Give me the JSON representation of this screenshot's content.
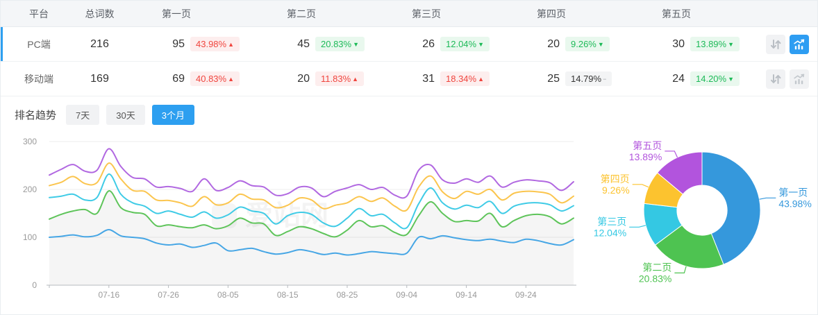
{
  "table": {
    "headers": [
      "平台",
      "总词数",
      "第一页",
      "第二页",
      "第三页",
      "第四页",
      "第五页"
    ],
    "rows": [
      {
        "platform": "PC端",
        "selected": true,
        "total": "216",
        "chart_active": true,
        "pages": [
          {
            "count": "95",
            "pct": "43.98%",
            "dir": "up"
          },
          {
            "count": "45",
            "pct": "20.83%",
            "dir": "down"
          },
          {
            "count": "26",
            "pct": "12.04%",
            "dir": "down"
          },
          {
            "count": "20",
            "pct": "9.26%",
            "dir": "down"
          },
          {
            "count": "30",
            "pct": "13.89%",
            "dir": "down"
          }
        ]
      },
      {
        "platform": "移动端",
        "selected": false,
        "total": "169",
        "chart_active": false,
        "pages": [
          {
            "count": "69",
            "pct": "40.83%",
            "dir": "up"
          },
          {
            "count": "20",
            "pct": "11.83%",
            "dir": "up"
          },
          {
            "count": "31",
            "pct": "18.34%",
            "dir": "up"
          },
          {
            "count": "25",
            "pct": "14.79%",
            "dir": "flat"
          },
          {
            "count": "24",
            "pct": "14.20%",
            "dir": "down"
          }
        ]
      }
    ]
  },
  "trend": {
    "label": "排名趋势",
    "tabs": [
      {
        "label": "7天",
        "active": false
      },
      {
        "label": "30天",
        "active": false
      },
      {
        "label": "3个月",
        "active": true
      }
    ]
  },
  "watermark": "爱站网",
  "colors": {
    "accent_blue": "#2d9ff0",
    "badge_up_text": "#f0453e",
    "badge_up_bg": "#fdeeee",
    "badge_down_text": "#1dba58",
    "badge_down_bg": "#e9f8ee",
    "badge_flat_bg": "#f3f4f5",
    "axis_label": "#999999",
    "gridline": "#ededee"
  },
  "chart_data": [
    {
      "type": "line",
      "title": "排名趋势（3个月）",
      "x_start_date": "07-06",
      "x_step_days": 2,
      "x_tick_labels": [
        "07-16",
        "07-26",
        "08-05",
        "08-15",
        "08-25",
        "09-04",
        "09-14",
        "09-24"
      ],
      "x_tick_indices": [
        5,
        10,
        15,
        20,
        25,
        30,
        35,
        40
      ],
      "ylim": [
        0,
        300
      ],
      "yticks": [
        0,
        100,
        200,
        300
      ],
      "grid": true,
      "legend": "none",
      "series": [
        {
          "name": "第一页",
          "color": "#46a6e5",
          "area": false,
          "values": [
            100,
            102,
            105,
            101,
            104,
            116,
            103,
            100,
            97,
            88,
            84,
            86,
            79,
            83,
            88,
            72,
            74,
            77,
            70,
            65,
            68,
            74,
            70,
            64,
            67,
            63,
            66,
            70,
            68,
            66,
            67,
            100,
            97,
            103,
            99,
            95,
            93,
            96,
            92,
            89,
            96,
            93,
            87,
            84,
            95
          ]
        },
        {
          "name": "第二页",
          "color": "#5ec45a",
          "area": true,
          "values": [
            138,
            148,
            155,
            158,
            150,
            197,
            162,
            152,
            148,
            124,
            126,
            122,
            120,
            126,
            118,
            124,
            140,
            130,
            128,
            104,
            112,
            122,
            118,
            108,
            101,
            115,
            135,
            122,
            124,
            110,
            106,
            145,
            174,
            150,
            133,
            135,
            134,
            150,
            122,
            135,
            145,
            148,
            143,
            128,
            140
          ]
        },
        {
          "name": "第三页",
          "color": "#3fcbe6",
          "area": false,
          "values": [
            183,
            186,
            190,
            178,
            183,
            232,
            190,
            172,
            165,
            150,
            155,
            148,
            142,
            153,
            140,
            147,
            163,
            155,
            150,
            128,
            145,
            152,
            148,
            130,
            123,
            140,
            160,
            145,
            148,
            130,
            120,
            170,
            203,
            172,
            159,
            167,
            162,
            175,
            150,
            165,
            171,
            172,
            168,
            155,
            166
          ]
        },
        {
          "name": "第四页",
          "color": "#fbc54e",
          "area": false,
          "values": [
            208,
            215,
            227,
            212,
            214,
            255,
            222,
            198,
            196,
            178,
            177,
            172,
            165,
            185,
            168,
            172,
            190,
            180,
            178,
            162,
            167,
            182,
            178,
            160,
            167,
            172,
            185,
            175,
            182,
            165,
            157,
            205,
            228,
            195,
            181,
            196,
            190,
            200,
            178,
            192,
            196,
            195,
            190,
            172,
            186
          ]
        },
        {
          "name": "第五页",
          "color": "#b168e1",
          "area": false,
          "values": [
            230,
            242,
            252,
            238,
            240,
            285,
            248,
            225,
            222,
            205,
            206,
            202,
            196,
            222,
            198,
            204,
            218,
            208,
            205,
            188,
            191,
            205,
            203,
            185,
            196,
            203,
            210,
            200,
            204,
            188,
            186,
            240,
            251,
            220,
            213,
            222,
            215,
            228,
            205,
            215,
            220,
            218,
            214,
            198,
            216
          ]
        }
      ]
    },
    {
      "type": "pie",
      "donut": true,
      "inner_radius_ratio": 0.43,
      "slices": [
        {
          "label": "第一页",
          "value": 43.98,
          "pct": "43.98%",
          "color": "#3598dc"
        },
        {
          "label": "第二页",
          "value": 20.83,
          "pct": "20.83%",
          "color": "#4ec351"
        },
        {
          "label": "第三页",
          "value": 12.04,
          "pct": "12.04%",
          "color": "#34c8e3"
        },
        {
          "label": "第四页",
          "value": 9.26,
          "pct": "9.26%",
          "color": "#fcc32f"
        },
        {
          "label": "第五页",
          "value": 13.89,
          "pct": "13.89%",
          "color": "#b254dd"
        }
      ]
    }
  ]
}
